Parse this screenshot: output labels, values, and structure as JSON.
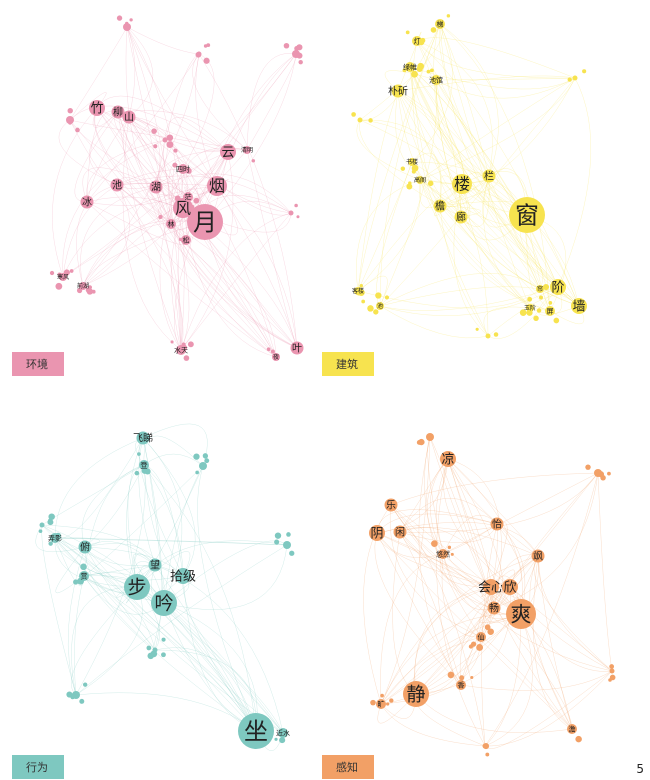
{
  "page_number": "5",
  "chart_data": [
    {
      "type": "network",
      "category": "环境",
      "color": "#ea95b0",
      "nodes": [
        {
          "label": "月",
          "size": 9
        },
        {
          "label": "烟",
          "size": 6
        },
        {
          "label": "风",
          "size": 6
        },
        {
          "label": "云",
          "size": 5
        },
        {
          "label": "竹",
          "size": 5
        },
        {
          "label": "柳",
          "size": 4
        },
        {
          "label": "山",
          "size": 4
        },
        {
          "label": "池",
          "size": 4
        },
        {
          "label": "湖",
          "size": 4
        },
        {
          "label": "冰",
          "size": 4
        },
        {
          "label": "叶",
          "size": 4
        },
        {
          "label": "水天",
          "size": 3
        },
        {
          "label": "林",
          "size": 3
        },
        {
          "label": "松",
          "size": 3
        },
        {
          "label": "茫",
          "size": 3
        },
        {
          "label": "四时",
          "size": 3
        },
        {
          "label": "寒风",
          "size": 2
        },
        {
          "label": "前湖",
          "size": 2
        },
        {
          "label": "清明",
          "size": 2
        },
        {
          "label": "夜",
          "size": 2
        },
        {
          "label": "",
          "size": 2
        },
        {
          "label": "",
          "size": 2
        },
        {
          "label": "",
          "size": 2
        },
        {
          "label": "",
          "size": 1
        },
        {
          "label": "",
          "size": 1
        },
        {
          "label": "",
          "size": 1
        }
      ]
    },
    {
      "type": "network",
      "category": "建筑",
      "color": "#f7e34f",
      "nodes": [
        {
          "label": "窗",
          "size": 9
        },
        {
          "label": "楼",
          "size": 6
        },
        {
          "label": "阶",
          "size": 5
        },
        {
          "label": "墙",
          "size": 5
        },
        {
          "label": "栏",
          "size": 4
        },
        {
          "label": "檐",
          "size": 4
        },
        {
          "label": "廊",
          "size": 4
        },
        {
          "label": "朴斫",
          "size": 4
        },
        {
          "label": "池馆",
          "size": 3
        },
        {
          "label": "绿帷",
          "size": 3
        },
        {
          "label": "灯",
          "size": 3
        },
        {
          "label": "梯",
          "size": 3
        },
        {
          "label": "屏",
          "size": 3
        },
        {
          "label": "玉阶",
          "size": 2
        },
        {
          "label": "帘",
          "size": 2
        },
        {
          "label": "书楼",
          "size": 2
        },
        {
          "label": "高阁",
          "size": 2
        },
        {
          "label": "客楼",
          "size": 2
        },
        {
          "label": "池",
          "size": 2
        },
        {
          "label": "",
          "size": 1
        },
        {
          "label": "",
          "size": 1
        },
        {
          "label": "",
          "size": 1
        }
      ]
    },
    {
      "type": "network",
      "category": "行为",
      "color": "#7ec8c0",
      "nodes": [
        {
          "label": "坐",
          "size": 9
        },
        {
          "label": "步",
          "size": 7
        },
        {
          "label": "吟",
          "size": 7
        },
        {
          "label": "拾级",
          "size": 5
        },
        {
          "label": "望",
          "size": 4
        },
        {
          "label": "飞睇",
          "size": 4
        },
        {
          "label": "俯",
          "size": 4
        },
        {
          "label": "登",
          "size": 3
        },
        {
          "label": "近水",
          "size": 3
        },
        {
          "label": "弄影",
          "size": 3
        },
        {
          "label": "赏",
          "size": 3
        },
        {
          "label": "",
          "size": 2
        },
        {
          "label": "",
          "size": 2
        },
        {
          "label": "",
          "size": 2
        },
        {
          "label": "",
          "size": 1
        },
        {
          "label": "",
          "size": 1
        }
      ]
    },
    {
      "type": "network",
      "category": "感知",
      "color": "#f2a066",
      "nodes": [
        {
          "label": "爽",
          "size": 8
        },
        {
          "label": "静",
          "size": 7
        },
        {
          "label": "凉",
          "size": 5
        },
        {
          "label": "会心",
          "size": 5
        },
        {
          "label": "欣",
          "size": 5
        },
        {
          "label": "阴",
          "size": 5
        },
        {
          "label": "畅",
          "size": 4
        },
        {
          "label": "闲",
          "size": 4
        },
        {
          "label": "乐",
          "size": 4
        },
        {
          "label": "怡",
          "size": 4
        },
        {
          "label": "飒",
          "size": 4
        },
        {
          "label": "香",
          "size": 3
        },
        {
          "label": "仙",
          "size": 3
        },
        {
          "label": "悠然",
          "size": 3
        },
        {
          "label": "澹",
          "size": 3
        },
        {
          "label": "旷",
          "size": 3
        },
        {
          "label": "",
          "size": 2
        },
        {
          "label": "",
          "size": 2
        },
        {
          "label": "",
          "size": 1
        },
        {
          "label": "",
          "size": 1
        }
      ]
    }
  ]
}
